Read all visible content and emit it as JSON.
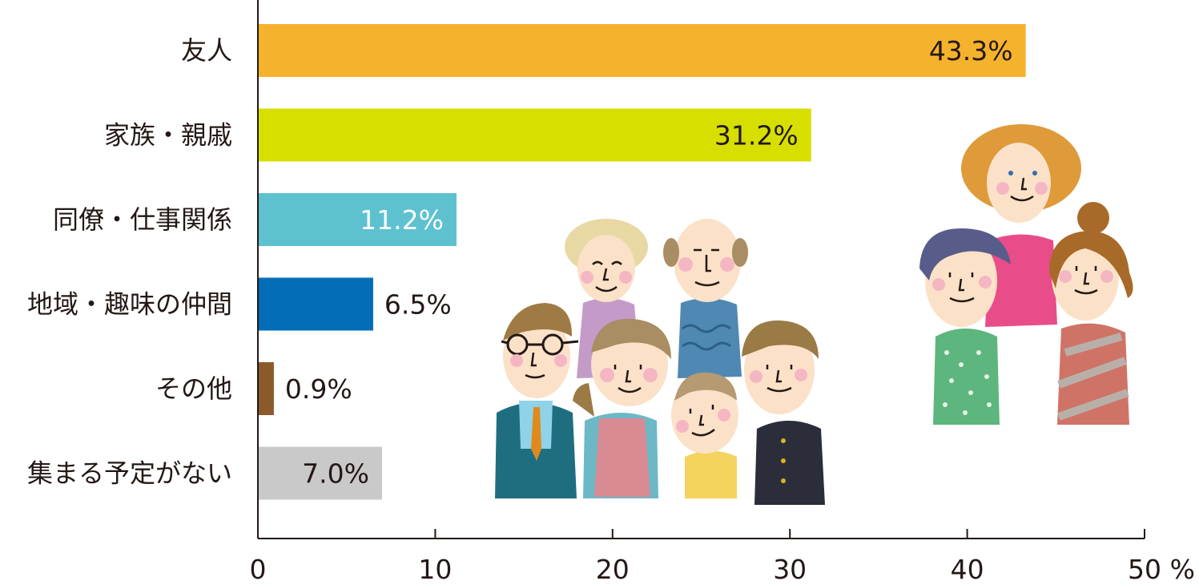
{
  "chart_data": {
    "type": "bar",
    "orientation": "horizontal",
    "categories": [
      "友人",
      "家族・親戚",
      "同僚・仕事関係",
      "地域・趣味の仲間",
      "その他",
      "集まる予定がない"
    ],
    "values": [
      43.3,
      31.2,
      11.2,
      6.5,
      0.9,
      7.0
    ],
    "value_labels": [
      "43.3%",
      "31.2%",
      "11.2%",
      "6.5%",
      "0.9%",
      "7.0%"
    ],
    "bar_colors": [
      "#f5b22c",
      "#d7df00",
      "#5ec1d0",
      "#036eb7",
      "#8b5a2b",
      "#c9c9c9"
    ],
    "label_colors": [
      "#231815",
      "#231815",
      "#ffffff",
      "#231815",
      "#231815",
      "#231815"
    ],
    "label_inside": [
      true,
      true,
      true,
      false,
      false,
      true
    ],
    "xlim": [
      0,
      50
    ],
    "xticks": [
      "0",
      "10",
      "20",
      "30",
      "40",
      "50"
    ],
    "x_unit": "%",
    "grid": false,
    "legend": "none"
  },
  "illustration": {
    "subject": "group of cartoon people (family, friends, colleagues)",
    "colors": {
      "skin": "#fbe1c8",
      "cheek": "#f5b6c4",
      "line": "#231815"
    }
  }
}
